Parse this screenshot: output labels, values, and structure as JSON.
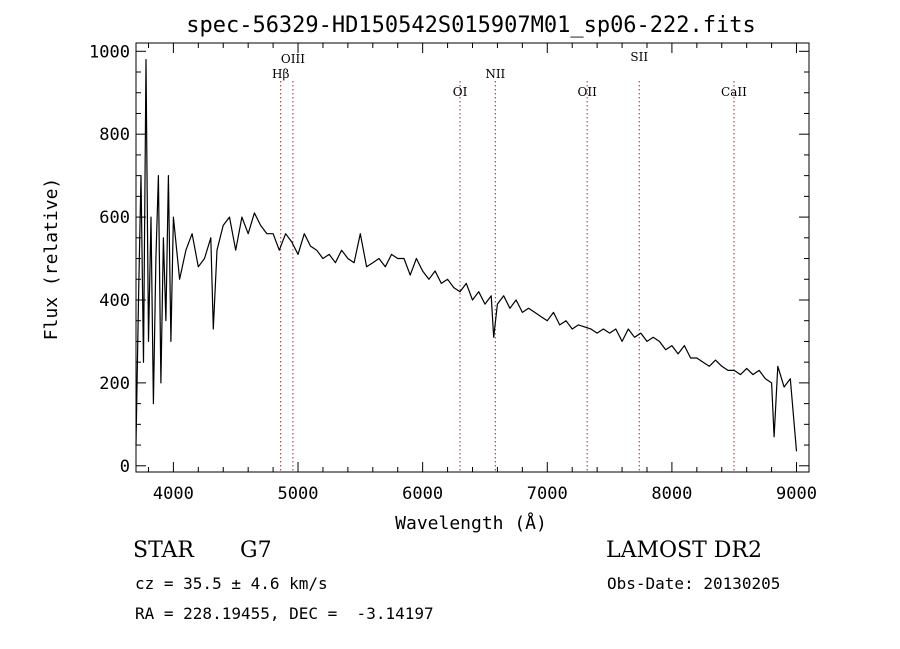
{
  "chart_data": {
    "type": "line",
    "title": "spec-56329-HD150542S015907M01_sp06-222.fits",
    "xlabel": "Wavelength (Å)",
    "ylabel": "Flux (relative)",
    "xlim": [
      3700,
      9100
    ],
    "ylim": [
      -15,
      1020
    ],
    "xticks": [
      4000,
      5000,
      6000,
      7000,
      8000,
      9000
    ],
    "yticks": [
      0,
      200,
      400,
      600,
      800,
      1000
    ],
    "grid": false,
    "series": [
      {
        "x": [
          3700,
          3720,
          3740,
          3760,
          3780,
          3800,
          3820,
          3840,
          3860,
          3880,
          3900,
          3920,
          3940,
          3960,
          3980,
          4000,
          4050,
          4100,
          4150,
          4200,
          4250,
          4300,
          4320,
          4350,
          4400,
          4450,
          4500,
          4550,
          4600,
          4650,
          4700,
          4750,
          4800,
          4850,
          4900,
          4950,
          5000,
          5050,
          5100,
          5150,
          5200,
          5250,
          5300,
          5350,
          5400,
          5450,
          5500,
          5550,
          5600,
          5650,
          5700,
          5750,
          5800,
          5850,
          5900,
          5950,
          6000,
          6050,
          6100,
          6150,
          6200,
          6250,
          6300,
          6350,
          6400,
          6450,
          6500,
          6550,
          6570,
          6600,
          6650,
          6700,
          6750,
          6800,
          6850,
          6900,
          6950,
          7000,
          7050,
          7100,
          7150,
          7200,
          7250,
          7300,
          7350,
          7400,
          7450,
          7500,
          7550,
          7600,
          7650,
          7700,
          7750,
          7800,
          7850,
          7900,
          7950,
          8000,
          8050,
          8100,
          8150,
          8200,
          8250,
          8300,
          8350,
          8400,
          8450,
          8500,
          8550,
          8600,
          8650,
          8700,
          8750,
          8800,
          8820,
          8850,
          8900,
          8950,
          9000
        ],
        "y": [
          50,
          400,
          700,
          250,
          980,
          300,
          600,
          150,
          500,
          700,
          200,
          550,
          350,
          700,
          300,
          600,
          450,
          520,
          560,
          480,
          500,
          550,
          330,
          520,
          580,
          600,
          520,
          600,
          560,
          610,
          580,
          560,
          560,
          520,
          560,
          540,
          510,
          560,
          530,
          520,
          500,
          510,
          490,
          520,
          500,
          490,
          560,
          480,
          490,
          500,
          480,
          510,
          500,
          500,
          460,
          500,
          470,
          450,
          470,
          440,
          450,
          430,
          420,
          440,
          400,
          420,
          390,
          410,
          310,
          390,
          410,
          380,
          400,
          370,
          380,
          370,
          360,
          350,
          370,
          340,
          350,
          330,
          340,
          335,
          330,
          320,
          330,
          320,
          330,
          300,
          330,
          310,
          320,
          300,
          310,
          300,
          280,
          290,
          270,
          290,
          260,
          260,
          250,
          240,
          255,
          240,
          230,
          230,
          220,
          235,
          220,
          230,
          210,
          200,
          70,
          240,
          190,
          210,
          35
        ]
      }
    ],
    "lines": [
      {
        "label": "Hβ",
        "x": 4861
      },
      {
        "label": "OIII",
        "x": 4959
      },
      {
        "label": "OI",
        "x": 6300
      },
      {
        "label": "NII",
        "x": 6583
      },
      {
        "label": "OII",
        "x": 7320
      },
      {
        "label": "SII",
        "x": 7738
      },
      {
        "label": "CaII",
        "x": 8498
      }
    ]
  },
  "info": {
    "object_class": "STAR",
    "subclass": "G7",
    "survey": "LAMOST DR2",
    "redshift_text": "cz = 35.5 ± 4.6 km/s",
    "obs_date_text": "Obs-Date: 20130205",
    "coords_text": "RA = 228.19455, DEC =  -3.14197"
  },
  "colors": {
    "spectrum": "#000000",
    "line_markers": "#b22222"
  }
}
